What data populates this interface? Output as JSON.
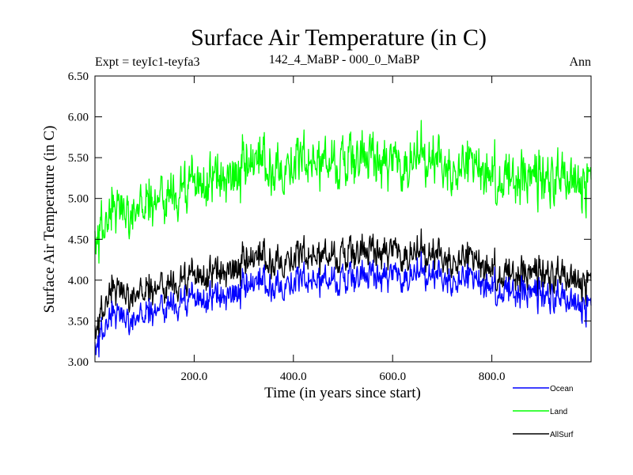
{
  "chart_data": {
    "type": "line",
    "title": "Surface Air Temperature (in C)",
    "subtitle_left": "Expt = teyIc1-teyfa3",
    "subtitle_center": "142_4_MaBP - 000_0_MaBP",
    "subtitle_right": "Ann",
    "xlabel": "Time (in years since start)",
    "ylabel": "Surface Air Temperature (in C)",
    "xlim": [
      0,
      1000
    ],
    "ylim": [
      3.0,
      6.5
    ],
    "xticks": [
      200,
      400,
      600,
      800
    ],
    "xtick_labels": [
      "200.0",
      "400.0",
      "600.0",
      "800.0"
    ],
    "yticks": [
      3.0,
      3.5,
      4.0,
      4.5,
      5.0,
      5.5,
      6.0,
      6.5
    ],
    "ytick_labels": [
      "3.00",
      "3.50",
      "4.00",
      "4.50",
      "5.00",
      "5.50",
      "6.00",
      "6.50"
    ],
    "x_anchor": [
      0,
      30,
      80,
      150,
      250,
      350,
      450,
      550,
      600,
      650,
      750,
      820,
      900,
      1000
    ],
    "series": [
      {
        "name": "Ocean",
        "color": "#0000ff",
        "anchor_values": [
          3.15,
          3.55,
          3.55,
          3.7,
          3.8,
          3.95,
          4.0,
          4.05,
          4.1,
          4.05,
          4.05,
          3.9,
          3.8,
          3.7
        ],
        "noise": 0.1
      },
      {
        "name": "Land",
        "color": "#00ff00",
        "anchor_values": [
          4.45,
          4.8,
          4.9,
          5.05,
          5.25,
          5.4,
          5.45,
          5.5,
          5.5,
          5.45,
          5.45,
          5.3,
          5.2,
          5.25
        ],
        "noise": 0.17
      },
      {
        "name": "AllSurf",
        "color": "#000000",
        "anchor_values": [
          3.35,
          3.85,
          3.85,
          3.95,
          4.1,
          4.25,
          4.3,
          4.35,
          4.4,
          4.3,
          4.3,
          4.1,
          4.05,
          4.0
        ],
        "noise": 0.11
      }
    ],
    "legend": [
      "Ocean",
      "Land",
      "AllSurf"
    ],
    "legend_position": "bottom-right"
  }
}
